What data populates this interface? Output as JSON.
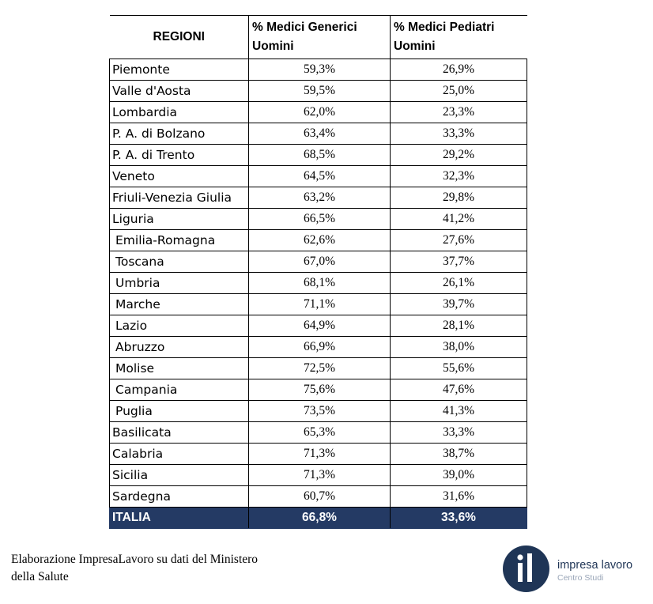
{
  "table": {
    "headers": {
      "region": "REGIONI",
      "gp_line1": "% Medici Generici",
      "gp_line2": "Uomini",
      "ped_line1": "% Medici Pediatri",
      "ped_line2": "Uomini"
    },
    "rows": [
      {
        "region": "Piemonte",
        "gp": "59,3%",
        "ped": "26,9%"
      },
      {
        "region": "Valle d'Aosta",
        "gp": "59,5%",
        "ped": "25,0%"
      },
      {
        "region": "Lombardia",
        "gp": "62,0%",
        "ped": "23,3%"
      },
      {
        "region": "P. A. di Bolzano",
        "gp": "63,4%",
        "ped": "33,3%"
      },
      {
        "region": "P. A. di Trento",
        "gp": "68,5%",
        "ped": "29,2%"
      },
      {
        "region": "Veneto",
        "gp": "64,5%",
        "ped": "32,3%"
      },
      {
        "region": "Friuli-Venezia Giulia",
        "gp": "63,2%",
        "ped": "29,8%"
      },
      {
        "region": "Liguria",
        "gp": "66,5%",
        "ped": "41,2%"
      },
      {
        "region": "Emilia-Romagna",
        "gp": "62,6%",
        "ped": "27,6%"
      },
      {
        "region": "Toscana",
        "gp": "67,0%",
        "ped": "37,7%"
      },
      {
        "region": "Umbria",
        "gp": "68,1%",
        "ped": "26,1%"
      },
      {
        "region": "Marche",
        "gp": "71,1%",
        "ped": "39,7%"
      },
      {
        "region": "Lazio",
        "gp": "64,9%",
        "ped": "28,1%"
      },
      {
        "region": "Abruzzo",
        "gp": "66,9%",
        "ped": "38,0%"
      },
      {
        "region": "Molise",
        "gp": "72,5%",
        "ped": "55,6%"
      },
      {
        "region": "Campania",
        "gp": "75,6%",
        "ped": "47,6%"
      },
      {
        "region": "Puglia",
        "gp": "73,5%",
        "ped": "41,3%"
      },
      {
        "region": "Basilicata",
        "gp": "65,3%",
        "ped": "33,3%"
      },
      {
        "region": "Calabria",
        "gp": "71,3%",
        "ped": "38,7%"
      },
      {
        "region": "Sicilia",
        "gp": "71,3%",
        "ped": "39,0%"
      },
      {
        "region": "Sardegna",
        "gp": "60,7%",
        "ped": "31,6%"
      }
    ],
    "total": {
      "region": "ITALIA",
      "gp": "66,8%",
      "ped": "33,6%"
    }
  },
  "caption": {
    "line1": "Elaborazione ImpresaLavoro su dati del Ministero",
    "line2": "della Salute"
  },
  "logo": {
    "name": "impresa lavoro",
    "subtitle": "Centro Studi",
    "mark_text": "il",
    "colors": {
      "circle": "#1f3556",
      "name": "#1f3556",
      "subtitle": "#9aa6b8"
    }
  },
  "colors": {
    "total_row_bg": "#243a64",
    "total_row_text": "#ffffff"
  }
}
